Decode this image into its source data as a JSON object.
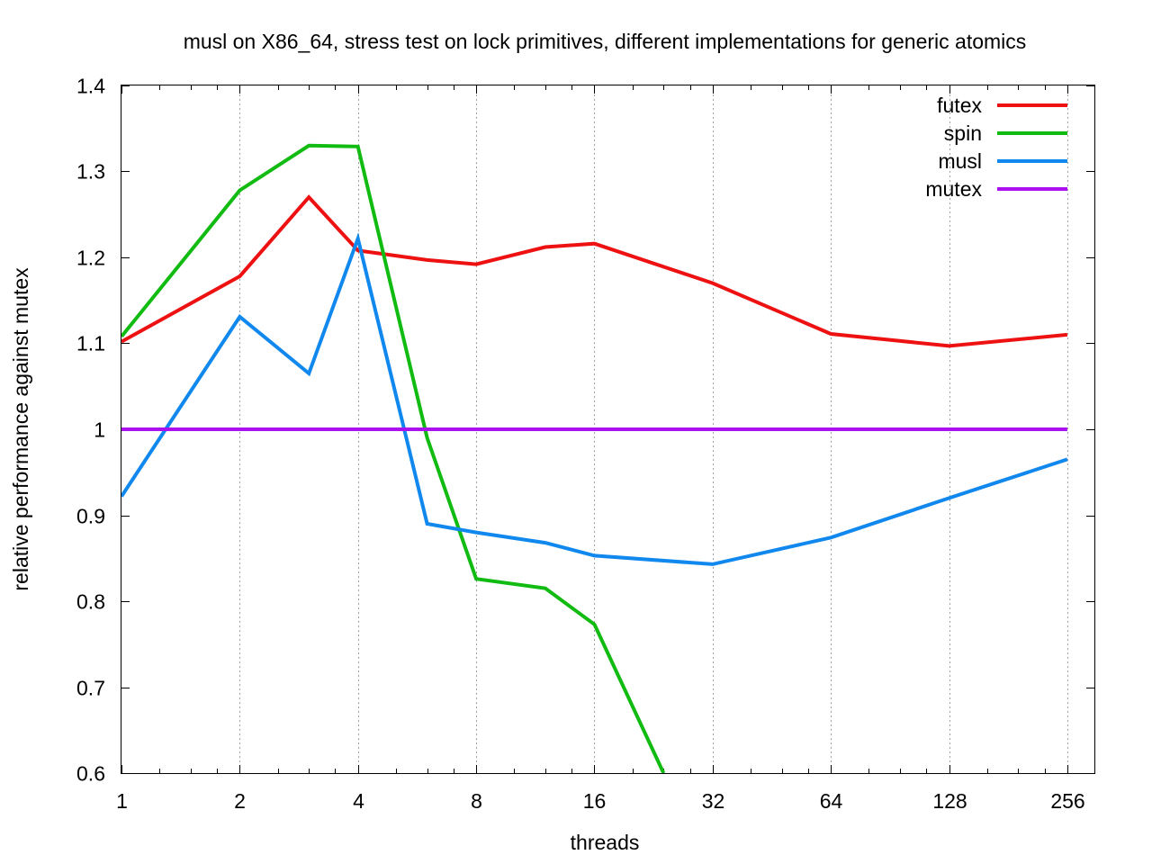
{
  "chart_data": {
    "type": "line",
    "title": "musl on X86_64, stress test on lock primitives, different implementations for generic atomics",
    "xlabel": "threads",
    "ylabel": "relative performance against mutex",
    "x_scale": "log2",
    "xlim": [
      1,
      300
    ],
    "ylim": [
      0.6,
      1.4
    ],
    "x_ticks": [
      1,
      2,
      4,
      8,
      16,
      32,
      64,
      128,
      256
    ],
    "x_tick_labels": [
      "1",
      "2",
      "4",
      "8",
      "16",
      "32",
      "64",
      "128",
      "256"
    ],
    "y_ticks": [
      0.6,
      0.7,
      0.8,
      0.9,
      1.0,
      1.1,
      1.2,
      1.3,
      1.4
    ],
    "y_tick_labels": [
      "0.6",
      "0.7",
      "0.8",
      "0.9",
      "1",
      "1.1",
      "1.2",
      "1.3",
      "1.4"
    ],
    "grid": "vertical dotted at major x ticks",
    "legend_position": "top-right",
    "series": [
      {
        "name": "futex",
        "color": "#ee1111",
        "points": [
          [
            1,
            1.102
          ],
          [
            2,
            1.178
          ],
          [
            3,
            1.27
          ],
          [
            4,
            1.208
          ],
          [
            6,
            1.197
          ],
          [
            8,
            1.192
          ],
          [
            12,
            1.212
          ],
          [
            16,
            1.216
          ],
          [
            32,
            1.17
          ],
          [
            64,
            1.111
          ],
          [
            128,
            1.097
          ],
          [
            256,
            1.11
          ]
        ]
      },
      {
        "name": "spin",
        "color": "#11bb11",
        "points": [
          [
            1,
            1.108
          ],
          [
            2,
            1.278
          ],
          [
            3,
            1.33
          ],
          [
            4,
            1.329
          ],
          [
            6,
            0.99
          ],
          [
            8,
            0.826
          ],
          [
            12,
            0.815
          ],
          [
            16,
            0.773
          ],
          [
            24,
            0.6
          ]
        ]
      },
      {
        "name": "musl",
        "color": "#1188ee",
        "points": [
          [
            1,
            0.922
          ],
          [
            2,
            1.131
          ],
          [
            3,
            1.065
          ],
          [
            4,
            1.222
          ],
          [
            6,
            0.89
          ],
          [
            8,
            0.88
          ],
          [
            12,
            0.868
          ],
          [
            16,
            0.853
          ],
          [
            32,
            0.843
          ],
          [
            64,
            0.874
          ],
          [
            128,
            0.92
          ],
          [
            256,
            0.965
          ]
        ]
      },
      {
        "name": "mutex",
        "color": "#aa11ee",
        "points": [
          [
            1,
            1.0
          ],
          [
            256,
            1.0
          ]
        ]
      }
    ]
  }
}
